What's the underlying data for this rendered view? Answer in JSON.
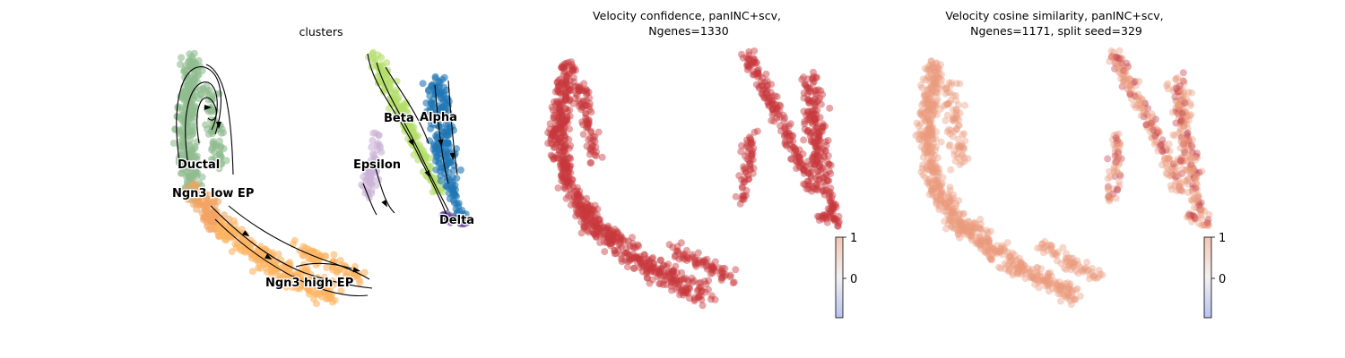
{
  "chart_data": [
    {
      "type": "scatter",
      "title": "clusters",
      "xlabel": "",
      "ylabel": "",
      "grid": false,
      "legend": "on-data",
      "series": [
        {
          "name": "Ductal",
          "color": "#8fbc8f"
        },
        {
          "name": "Ngn3 low EP",
          "color": "#f4a460"
        },
        {
          "name": "Ngn3 high EP",
          "color": "#fdb462"
        },
        {
          "name": "Beta",
          "color": "#b3de69"
        },
        {
          "name": "Alpha",
          "color": "#1f77b4"
        },
        {
          "name": "Epsilon",
          "color": "#cab2d6"
        },
        {
          "name": "Delta",
          "color": "#5e3c99"
        }
      ],
      "streamlines": true
    },
    {
      "type": "scatter",
      "title_lines": [
        "Velocity confidence, panINC+scv,",
        "Ngenes=1330"
      ],
      "xlabel": "",
      "ylabel": "",
      "grid": false,
      "colorbar": {
        "ticks": [
          "1",
          "0"
        ],
        "cmap": "coolwarm",
        "range_approx": [
          -1,
          1
        ]
      },
      "point_color": "#c8383c"
    },
    {
      "type": "scatter",
      "title_lines": [
        "Velocity cosine similarity, panINC+scv,",
        "Ngenes=1171, split seed=329"
      ],
      "xlabel": "",
      "ylabel": "",
      "grid": false,
      "colorbar": {
        "ticks": [
          "1",
          "0"
        ],
        "cmap": "coolwarm",
        "range_approx": [
          -1,
          1
        ]
      },
      "point_color": "#ec9a7e"
    }
  ]
}
